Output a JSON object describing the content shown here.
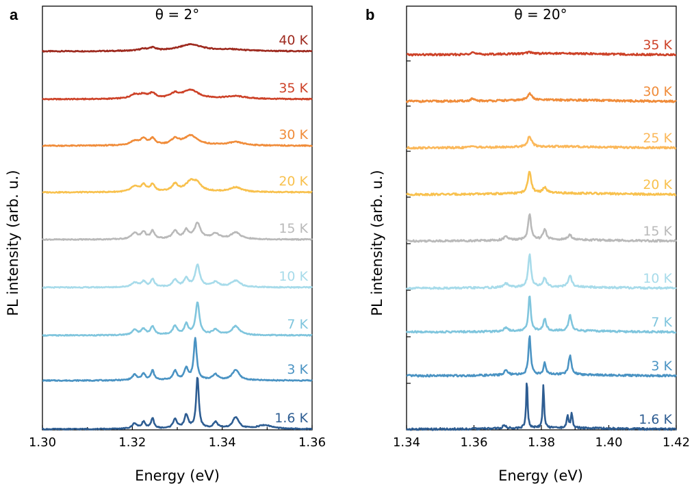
{
  "chart_data": [
    {
      "type": "line",
      "panel_letter": "a",
      "title": "θ = 2°",
      "xlabel": "Energy (eV)",
      "ylabel": "PL intensity (arb. u.)",
      "xlim": [
        1.3,
        1.36
      ],
      "xticks": [
        "1.30",
        "1.32",
        "1.34",
        "1.36"
      ],
      "xtick_values": [
        1.3,
        1.32,
        1.34,
        1.36
      ],
      "grid": false,
      "legend": "none; temperature labels placed at right of each trace",
      "series": [
        {
          "name": "40 K",
          "color": "#9e2a1f",
          "baseline": 8,
          "peaks": [
            {
              "x": 1.3245,
              "y": 1.3,
              "w": 0.0008
            },
            {
              "x": 1.333,
              "y": 3.0,
              "w": 0.003
            },
            {
              "x": 1.3225,
              "y": 0.8,
              "w": 0.0012
            },
            {
              "x": 1.342,
              "y": 0.6,
              "w": 0.003
            }
          ]
        },
        {
          "name": "35 K",
          "color": "#cd4228",
          "baseline": 7,
          "peaks": [
            {
              "x": 1.3205,
              "y": 2.0,
              "w": 0.0012
            },
            {
              "x": 1.3225,
              "y": 1.8,
              "w": 0.001
            },
            {
              "x": 1.3245,
              "y": 2.4,
              "w": 0.0008
            },
            {
              "x": 1.3295,
              "y": 2.2,
              "w": 0.0012
            },
            {
              "x": 1.333,
              "y": 4.0,
              "w": 0.002
            },
            {
              "x": 1.343,
              "y": 1.2,
              "w": 0.0025
            }
          ]
        },
        {
          "name": "30 K",
          "color": "#f08c3a",
          "baseline": 6,
          "peaks": [
            {
              "x": 1.3205,
              "y": 2.0,
              "w": 0.0012
            },
            {
              "x": 1.3225,
              "y": 2.8,
              "w": 0.0008
            },
            {
              "x": 1.3245,
              "y": 3.0,
              "w": 0.0007
            },
            {
              "x": 1.3295,
              "y": 2.8,
              "w": 0.001
            },
            {
              "x": 1.333,
              "y": 4.5,
              "w": 0.0018
            },
            {
              "x": 1.343,
              "y": 1.5,
              "w": 0.002
            }
          ]
        },
        {
          "name": "20 K",
          "color": "#f8c14e",
          "baseline": 5,
          "peaks": [
            {
              "x": 1.3205,
              "y": 2.5,
              "w": 0.001
            },
            {
              "x": 1.3225,
              "y": 3.2,
              "w": 0.0007
            },
            {
              "x": 1.3245,
              "y": 3.4,
              "w": 0.0006
            },
            {
              "x": 1.3295,
              "y": 3.4,
              "w": 0.0008
            },
            {
              "x": 1.333,
              "y": 4.7,
              "w": 0.0014
            },
            {
              "x": 1.3345,
              "y": 3.0,
              "w": 0.001
            },
            {
              "x": 1.343,
              "y": 2.2,
              "w": 0.0015
            }
          ]
        },
        {
          "name": "15 K",
          "color": "#b9b9b9",
          "baseline": 4,
          "peaks": [
            {
              "x": 1.3205,
              "y": 3.0,
              "w": 0.0008
            },
            {
              "x": 1.3225,
              "y": 3.4,
              "w": 0.0006
            },
            {
              "x": 1.3245,
              "y": 3.8,
              "w": 0.0005
            },
            {
              "x": 1.3295,
              "y": 3.8,
              "w": 0.0007
            },
            {
              "x": 1.332,
              "y": 4.0,
              "w": 0.0006
            },
            {
              "x": 1.3345,
              "y": 7.5,
              "w": 0.0008
            },
            {
              "x": 1.3385,
              "y": 2.5,
              "w": 0.001
            },
            {
              "x": 1.343,
              "y": 3.2,
              "w": 0.0012
            }
          ]
        },
        {
          "name": "10 K",
          "color": "#a7dbea",
          "baseline": 3,
          "peaks": [
            {
              "x": 1.3205,
              "y": 2.2,
              "w": 0.0008
            },
            {
              "x": 1.3225,
              "y": 2.6,
              "w": 0.0006
            },
            {
              "x": 1.3245,
              "y": 3.6,
              "w": 0.0005
            },
            {
              "x": 1.3295,
              "y": 3.4,
              "w": 0.0006
            },
            {
              "x": 1.332,
              "y": 4.0,
              "w": 0.0006
            },
            {
              "x": 1.3345,
              "y": 10.5,
              "w": 0.0006
            },
            {
              "x": 1.3385,
              "y": 2.2,
              "w": 0.0009
            },
            {
              "x": 1.343,
              "y": 3.0,
              "w": 0.0012
            }
          ]
        },
        {
          "name": "7 K",
          "color": "#7fc5dd",
          "baseline": 2,
          "peaks": [
            {
              "x": 1.3205,
              "y": 2.4,
              "w": 0.0007
            },
            {
              "x": 1.3225,
              "y": 2.8,
              "w": 0.0006
            },
            {
              "x": 1.3245,
              "y": 4.0,
              "w": 0.0005
            },
            {
              "x": 1.3295,
              "y": 4.2,
              "w": 0.0006
            },
            {
              "x": 1.332,
              "y": 5.0,
              "w": 0.0005
            },
            {
              "x": 1.3345,
              "y": 15.5,
              "w": 0.0005
            },
            {
              "x": 1.3385,
              "y": 2.4,
              "w": 0.0008
            },
            {
              "x": 1.343,
              "y": 4.2,
              "w": 0.001
            }
          ]
        },
        {
          "name": "3 K",
          "color": "#4a93c3",
          "baseline": 1,
          "peaks": [
            {
              "x": 1.3205,
              "y": 2.6,
              "w": 0.0006
            },
            {
              "x": 1.3225,
              "y": 3.0,
              "w": 0.0005
            },
            {
              "x": 1.3245,
              "y": 4.6,
              "w": 0.0004
            },
            {
              "x": 1.3295,
              "y": 4.4,
              "w": 0.0005
            },
            {
              "x": 1.332,
              "y": 5.5,
              "w": 0.0005
            },
            {
              "x": 1.334,
              "y": 20.0,
              "w": 0.0004
            },
            {
              "x": 1.3385,
              "y": 2.6,
              "w": 0.0007
            },
            {
              "x": 1.343,
              "y": 5.0,
              "w": 0.0009
            }
          ]
        },
        {
          "name": "1.6 K",
          "color": "#2e5d92",
          "baseline": 0,
          "peaks": [
            {
              "x": 1.3205,
              "y": 2.6,
              "w": 0.0006
            },
            {
              "x": 1.3225,
              "y": 3.2,
              "w": 0.0005
            },
            {
              "x": 1.3245,
              "y": 4.8,
              "w": 0.0004
            },
            {
              "x": 1.3295,
              "y": 4.6,
              "w": 0.0005
            },
            {
              "x": 1.332,
              "y": 6.5,
              "w": 0.0005
            },
            {
              "x": 1.3345,
              "y": 25.0,
              "w": 0.00035
            },
            {
              "x": 1.3385,
              "y": 3.0,
              "w": 0.0006
            },
            {
              "x": 1.343,
              "y": 5.5,
              "w": 0.0008
            },
            {
              "x": 1.3495,
              "y": 1.8,
              "w": 0.002
            }
          ]
        }
      ]
    },
    {
      "type": "line",
      "panel_letter": "b",
      "title": "θ = 20°",
      "xlabel": "Energy (eV)",
      "ylabel": "PL intensity (arb. u.)",
      "xlim": [
        1.34,
        1.42
      ],
      "xticks": [
        "1.34",
        "1.36",
        "1.38",
        "1.40",
        "1.42"
      ],
      "xtick_values": [
        1.34,
        1.36,
        1.38,
        1.4,
        1.42
      ],
      "grid": false,
      "legend": "none; temperature labels placed at right of each trace",
      "series": [
        {
          "name": "35 K",
          "color": "#cd4228",
          "baseline": 8,
          "peaks": [
            {
              "x": 1.3595,
              "y": 0.8,
              "w": 0.0006
            },
            {
              "x": 1.3765,
              "y": 0.4,
              "w": 0.001
            }
          ]
        },
        {
          "name": "30 K",
          "color": "#f08c3a",
          "baseline": 7,
          "peaks": [
            {
              "x": 1.3595,
              "y": 0.6,
              "w": 0.0006
            },
            {
              "x": 1.3765,
              "y": 1.8,
              "w": 0.0008
            }
          ]
        },
        {
          "name": "25 K",
          "color": "#fbb85a",
          "baseline": 6,
          "peaks": [
            {
              "x": 1.3595,
              "y": 0.6,
              "w": 0.0006
            },
            {
              "x": 1.3765,
              "y": 2.8,
              "w": 0.0007
            }
          ]
        },
        {
          "name": "20 K",
          "color": "#f8c14e",
          "baseline": 5,
          "peaks": [
            {
              "x": 1.3765,
              "y": 5.8,
              "w": 0.0006
            },
            {
              "x": 1.381,
              "y": 1.5,
              "w": 0.0007
            }
          ]
        },
        {
          "name": "15 K",
          "color": "#b9b9b9",
          "baseline": 4,
          "peaks": [
            {
              "x": 1.3695,
              "y": 0.9,
              "w": 0.0008
            },
            {
              "x": 1.3765,
              "y": 7.0,
              "w": 0.0005
            },
            {
              "x": 1.381,
              "y": 2.6,
              "w": 0.0006
            },
            {
              "x": 1.3885,
              "y": 1.2,
              "w": 0.0007
            }
          ]
        },
        {
          "name": "10 K",
          "color": "#a7dbea",
          "baseline": 3,
          "peaks": [
            {
              "x": 1.3695,
              "y": 1.0,
              "w": 0.0008
            },
            {
              "x": 1.3765,
              "y": 8.6,
              "w": 0.0005
            },
            {
              "x": 1.381,
              "y": 2.4,
              "w": 0.0006
            },
            {
              "x": 1.3885,
              "y": 3.0,
              "w": 0.0006
            }
          ]
        },
        {
          "name": "7 K",
          "color": "#7fc5dd",
          "baseline": 2,
          "peaks": [
            {
              "x": 1.3695,
              "y": 1.0,
              "w": 0.0007
            },
            {
              "x": 1.3765,
              "y": 9.6,
              "w": 0.0004
            },
            {
              "x": 1.381,
              "y": 3.2,
              "w": 0.0005
            },
            {
              "x": 1.3885,
              "y": 4.2,
              "w": 0.0005
            }
          ]
        },
        {
          "name": "3 K",
          "color": "#4a93c3",
          "baseline": 1,
          "peaks": [
            {
              "x": 1.3695,
              "y": 1.3,
              "w": 0.0006
            },
            {
              "x": 1.3765,
              "y": 10.5,
              "w": 0.0004
            },
            {
              "x": 1.381,
              "y": 3.2,
              "w": 0.0004
            },
            {
              "x": 1.3885,
              "y": 5.0,
              "w": 0.0005
            }
          ]
        },
        {
          "name": "1.6 K",
          "color": "#2e5d92",
          "baseline": 0,
          "peaks": [
            {
              "x": 1.369,
              "y": 0.8,
              "w": 0.0006
            },
            {
              "x": 1.3757,
              "y": 13.0,
              "w": 0.00025
            },
            {
              "x": 1.3806,
              "y": 11.4,
              "w": 0.00025
            },
            {
              "x": 1.3878,
              "y": 3.4,
              "w": 0.0003
            },
            {
              "x": 1.389,
              "y": 3.8,
              "w": 0.0003
            }
          ]
        }
      ]
    }
  ]
}
